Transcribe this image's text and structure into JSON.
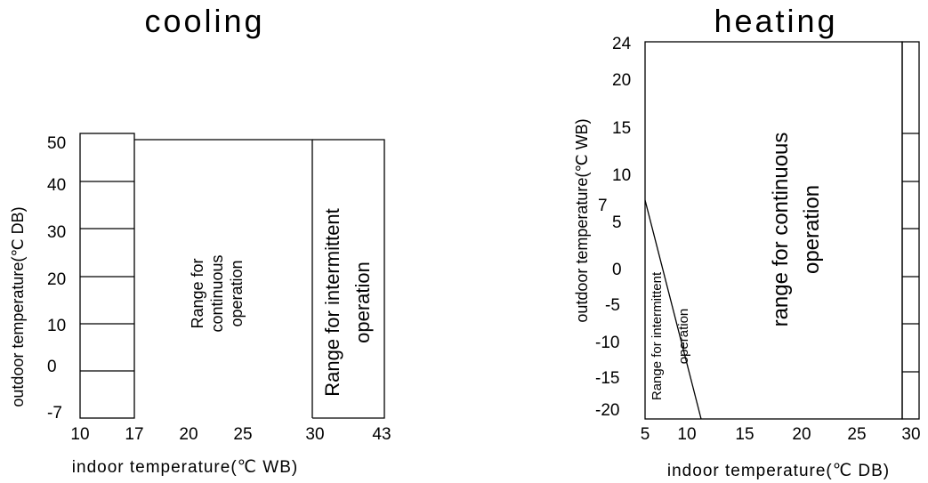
{
  "cooling": {
    "title": "cooling",
    "xlabel": "indoor temperature(℃ WB)",
    "ylabel": "outdoor temperature(℃ DB)",
    "x_ticks": [
      "10",
      "17",
      "20",
      "25",
      "30",
      "43"
    ],
    "y_ticks": [
      "50",
      "40",
      "30",
      "20",
      "10",
      "0",
      "-7"
    ],
    "continuous_label": [
      "Range for",
      "continuous",
      "operation"
    ],
    "intermittent_label": [
      "Range for intermittent",
      "operation"
    ]
  },
  "heating": {
    "title": "heating",
    "xlabel": "indoor temperature(℃ DB)",
    "ylabel": "outdoor temperature(℃ WB)",
    "x_ticks": [
      "5",
      "10",
      "15",
      "20",
      "25",
      "30"
    ],
    "y_ticks": [
      "24",
      "20",
      "15",
      "10",
      "7",
      "5",
      "0",
      "-5",
      "-10",
      "-15",
      "-20"
    ],
    "continuous_label": [
      "range for continuous",
      "operation"
    ],
    "intermittent_label": [
      "Range for intermittent",
      "operation"
    ]
  }
}
